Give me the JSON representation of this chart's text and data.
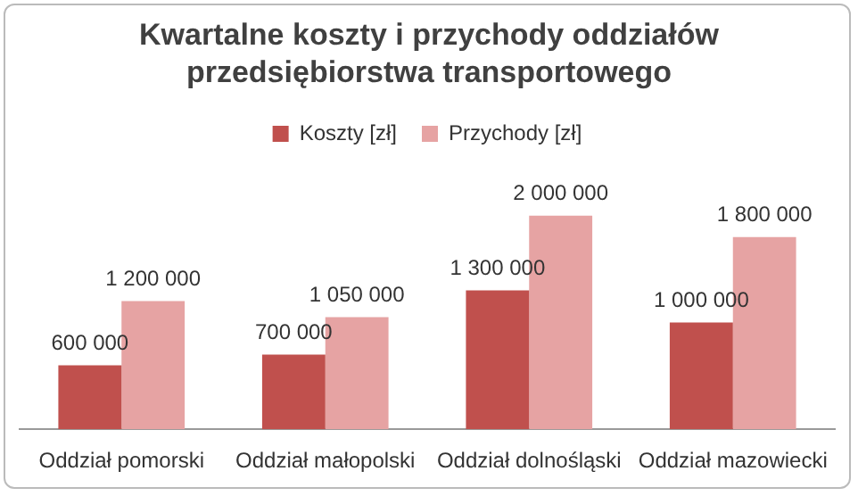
{
  "chart_data": {
    "type": "bar",
    "title": "Kwartalne koszty i przychody oddziałów przedsiębiorstwa transportowego",
    "categories": [
      "Oddział pomorski",
      "Oddział małopolski",
      "Oddział dolnośląski",
      "Oddział mazowiecki"
    ],
    "series": [
      {
        "name": "Koszty [zł]",
        "color": "#c0504d",
        "values": [
          600000,
          700000,
          1300000,
          1000000
        ],
        "value_labels": [
          "600 000",
          "700 000",
          "1 300 000",
          "1 000 000"
        ]
      },
      {
        "name": "Przychody [zł]",
        "color": "#e6a3a3",
        "values": [
          1200000,
          1050000,
          2000000,
          1800000
        ],
        "value_labels": [
          "1 200 000",
          "1 050 000",
          "2 000 000",
          "1 800 000"
        ]
      }
    ],
    "legend": "top"
  }
}
